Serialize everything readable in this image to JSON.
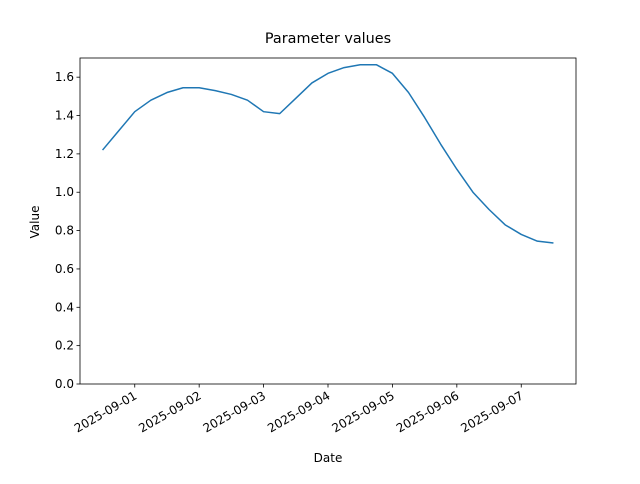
{
  "chart_data": {
    "type": "line",
    "title": "Parameter values",
    "xlabel": "Date",
    "ylabel": "Value",
    "x": [
      "2025-08-31T12:00",
      "2025-08-31T18:00",
      "2025-09-01T00:00",
      "2025-09-01T06:00",
      "2025-09-01T12:00",
      "2025-09-01T18:00",
      "2025-09-02T00:00",
      "2025-09-02T06:00",
      "2025-09-02T12:00",
      "2025-09-02T18:00",
      "2025-09-03T00:00",
      "2025-09-03T06:00",
      "2025-09-03T12:00",
      "2025-09-03T18:00",
      "2025-09-04T00:00",
      "2025-09-04T06:00",
      "2025-09-04T12:00",
      "2025-09-04T18:00",
      "2025-09-05T00:00",
      "2025-09-05T06:00",
      "2025-09-05T12:00",
      "2025-09-05T18:00",
      "2025-09-06T00:00",
      "2025-09-06T06:00",
      "2025-09-06T12:00",
      "2025-09-06T18:00",
      "2025-09-07T00:00",
      "2025-09-07T06:00",
      "2025-09-07T12:00"
    ],
    "series": [
      {
        "name": "Value",
        "color": "#1f77b4",
        "values": [
          1.22,
          1.32,
          1.42,
          1.48,
          1.52,
          1.545,
          1.545,
          1.53,
          1.51,
          1.48,
          1.42,
          1.41,
          1.49,
          1.57,
          1.62,
          1.65,
          1.665,
          1.665,
          1.62,
          1.52,
          1.39,
          1.25,
          1.12,
          1.0,
          0.91,
          0.83,
          0.78,
          0.745,
          0.735
        ]
      }
    ],
    "xlim": [
      "2025-08-31T03:36",
      "2025-09-07T20:24"
    ],
    "xticks": [
      "2025-09-01",
      "2025-09-02",
      "2025-09-03",
      "2025-09-04",
      "2025-09-05",
      "2025-09-06",
      "2025-09-07"
    ],
    "ylim": [
      0,
      1.7
    ],
    "yticks": [
      {
        "value": 0,
        "label": "0.0"
      },
      {
        "value": 0.2,
        "label": "0.2"
      },
      {
        "value": 0.4,
        "label": "0.4"
      },
      {
        "value": 0.6,
        "label": "0.6"
      },
      {
        "value": 0.8,
        "label": "0.8"
      },
      {
        "value": 1,
        "label": "1.0"
      },
      {
        "value": 1.2,
        "label": "1.2"
      },
      {
        "value": 1.4,
        "label": "1.4"
      },
      {
        "value": 1.6,
        "label": "1.6"
      }
    ]
  }
}
